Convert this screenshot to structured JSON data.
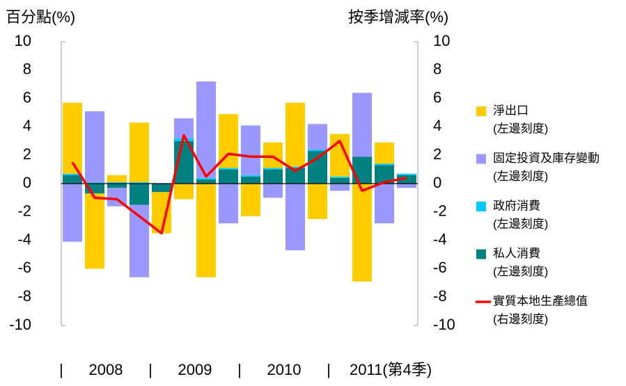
{
  "chart_data": {
    "type": "bar",
    "stacked": true,
    "ytitle": "百分點(%)",
    "y2title": "按季增減率(%)",
    "categories": [
      null,
      null,
      null,
      null,
      null,
      null,
      null,
      null,
      null,
      null,
      null,
      null,
      null,
      null,
      null,
      null
    ],
    "x_groups": [
      "2008",
      "2009",
      "2010",
      "2011(第4季)"
    ],
    "x_group_separator": "|",
    "ylim": [
      -10,
      10
    ],
    "yticks": [
      -10,
      -8,
      -6,
      -4,
      -2,
      0,
      2,
      4,
      6,
      8,
      10
    ],
    "y2lim": [
      -10,
      10
    ],
    "y2ticks": [
      -10,
      -8,
      -6,
      -4,
      -2,
      0,
      2,
      4,
      6,
      8,
      10
    ],
    "legend": "right",
    "series": [
      {
        "name": "私人消費",
        "note": "(左邊刻度)",
        "color": "#008080",
        "type": "bar",
        "values": [
          0.6,
          -0.7,
          -0.3,
          -1.5,
          -0.6,
          3.0,
          0.3,
          1.0,
          0.5,
          1.0,
          1.1,
          2.3,
          0.4,
          1.9,
          1.3,
          0.6
        ]
      },
      {
        "name": "政府消費",
        "note": "(左邊刻度)",
        "color": "#00CCFF",
        "type": "bar",
        "values": [
          0.1,
          0.1,
          0.1,
          0.1,
          0.0,
          0.2,
          0.1,
          0.1,
          0.1,
          0.1,
          0.1,
          0.1,
          0.1,
          0.0,
          0.1,
          0.1
        ]
      },
      {
        "name": "固定投資及庫存變動",
        "note": "(左邊刻度)",
        "color": "#9999FF",
        "type": "bar",
        "values": [
          -4.1,
          5.0,
          -1.3,
          -5.1,
          0.0,
          1.4,
          6.8,
          -2.8,
          3.5,
          -1.0,
          -4.7,
          1.8,
          -0.5,
          4.5,
          -2.8,
          -0.3
        ]
      },
      {
        "name": "淨出口",
        "note": "(左邊刻度)",
        "color": "#FFCC00",
        "type": "bar",
        "values": [
          5.0,
          -5.3,
          0.5,
          4.2,
          -2.9,
          -1.1,
          -6.6,
          3.8,
          -2.3,
          1.8,
          4.5,
          -2.5,
          3.0,
          -6.9,
          1.5,
          0.0
        ]
      },
      {
        "name": "實質本地生產總值",
        "note": "(右邊刻度)",
        "color": "#FF0000",
        "type": "line",
        "axis": "y2",
        "values": [
          1.5,
          -1.0,
          -1.1,
          -2.3,
          -3.5,
          3.4,
          0.5,
          2.1,
          1.9,
          1.9,
          0.9,
          1.8,
          3.0,
          -0.5,
          0.1,
          0.4
        ]
      }
    ],
    "legend_order": [
      3,
      2,
      1,
      0,
      4
    ]
  }
}
